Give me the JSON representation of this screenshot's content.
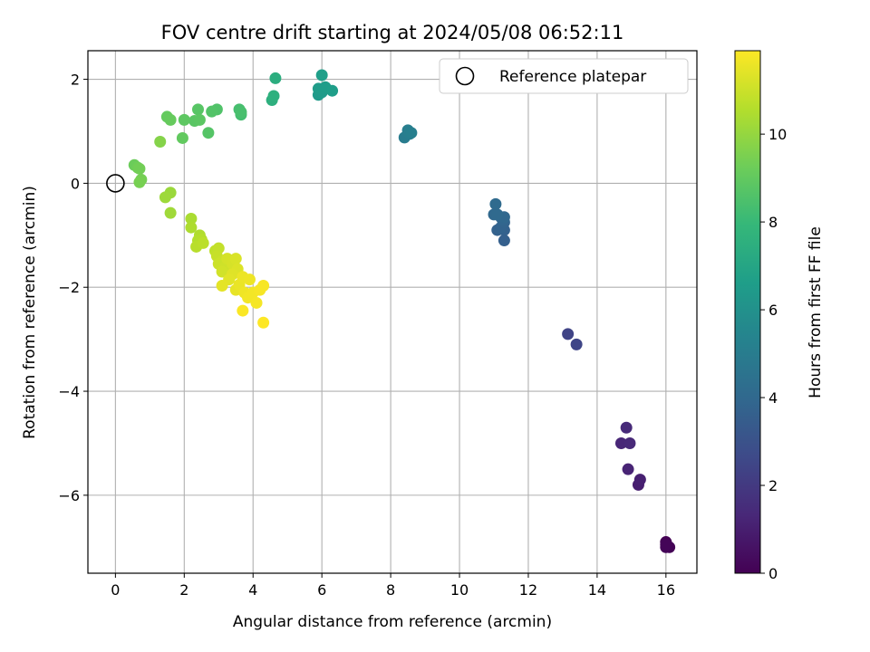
{
  "chart_data": {
    "type": "scatter",
    "title": "FOV centre drift starting at 2024/05/08 06:52:11",
    "xlabel": "Angular distance from reference (arcmin)",
    "ylabel": "Rotation from reference (arcmin)",
    "xlim": [
      -0.8,
      16.9
    ],
    "ylim": [
      -7.5,
      2.55
    ],
    "xticks": [
      0,
      2,
      4,
      6,
      8,
      10,
      12,
      14,
      16
    ],
    "yticks": [
      2,
      0,
      -2,
      -4,
      -6
    ],
    "grid": true,
    "legend": {
      "placement": "top-right",
      "entries": [
        "Reference platepar"
      ]
    },
    "reference_point": {
      "x": 0,
      "y": 0
    },
    "colorbar": {
      "label": "Hours from first FF file",
      "colormap": "viridis",
      "range": [
        0,
        11.9
      ],
      "ticks": [
        0,
        2,
        4,
        6,
        8,
        10
      ]
    },
    "points": [
      {
        "x": 16.0,
        "y": -6.9,
        "h": 0.0
      },
      {
        "x": 16.1,
        "y": -7.0,
        "h": 0.05
      },
      {
        "x": 16.0,
        "y": -7.0,
        "h": 0.1
      },
      {
        "x": 16.0,
        "y": -6.95,
        "h": 0.15
      },
      {
        "x": 15.2,
        "y": -5.8,
        "h": 1.0
      },
      {
        "x": 15.25,
        "y": -5.7,
        "h": 1.05
      },
      {
        "x": 14.9,
        "y": -5.5,
        "h": 1.2
      },
      {
        "x": 14.7,
        "y": -5.0,
        "h": 1.3
      },
      {
        "x": 14.95,
        "y": -5.0,
        "h": 1.35
      },
      {
        "x": 14.85,
        "y": -4.7,
        "h": 1.4
      },
      {
        "x": 13.15,
        "y": -2.9,
        "h": 2.4
      },
      {
        "x": 13.4,
        "y": -3.1,
        "h": 2.45
      },
      {
        "x": 11.3,
        "y": -1.1,
        "h": 3.6
      },
      {
        "x": 11.3,
        "y": -0.9,
        "h": 3.65
      },
      {
        "x": 11.1,
        "y": -0.9,
        "h": 3.7
      },
      {
        "x": 11.2,
        "y": -0.85,
        "h": 3.75
      },
      {
        "x": 11.3,
        "y": -0.75,
        "h": 3.8
      },
      {
        "x": 11.2,
        "y": -0.65,
        "h": 3.85
      },
      {
        "x": 11.25,
        "y": -0.7,
        "h": 3.9
      },
      {
        "x": 11.3,
        "y": -0.65,
        "h": 3.95
      },
      {
        "x": 11.0,
        "y": -0.6,
        "h": 4.0
      },
      {
        "x": 11.1,
        "y": -0.6,
        "h": 4.05
      },
      {
        "x": 11.05,
        "y": -0.4,
        "h": 4.1
      },
      {
        "x": 8.4,
        "y": 0.88,
        "h": 5.0
      },
      {
        "x": 8.55,
        "y": 0.95,
        "h": 5.05
      },
      {
        "x": 8.5,
        "y": 1.02,
        "h": 5.1
      },
      {
        "x": 8.6,
        "y": 0.97,
        "h": 5.15
      },
      {
        "x": 5.9,
        "y": 1.7,
        "h": 6.4
      },
      {
        "x": 6.0,
        "y": 1.75,
        "h": 6.45
      },
      {
        "x": 5.9,
        "y": 1.82,
        "h": 6.5
      },
      {
        "x": 6.1,
        "y": 1.85,
        "h": 6.55
      },
      {
        "x": 6.3,
        "y": 1.78,
        "h": 6.6
      },
      {
        "x": 6.0,
        "y": 2.08,
        "h": 6.65
      },
      {
        "x": 4.65,
        "y": 2.02,
        "h": 7.4
      },
      {
        "x": 4.55,
        "y": 1.6,
        "h": 7.5
      },
      {
        "x": 4.6,
        "y": 1.68,
        "h": 7.55
      },
      {
        "x": 3.65,
        "y": 1.32,
        "h": 8.3
      },
      {
        "x": 3.6,
        "y": 1.42,
        "h": 8.35
      },
      {
        "x": 3.65,
        "y": 1.37,
        "h": 8.4
      },
      {
        "x": 2.95,
        "y": 1.42,
        "h": 8.6
      },
      {
        "x": 2.8,
        "y": 1.38,
        "h": 8.65
      },
      {
        "x": 2.7,
        "y": 0.97,
        "h": 8.7
      },
      {
        "x": 2.4,
        "y": 1.42,
        "h": 8.75
      },
      {
        "x": 2.3,
        "y": 1.2,
        "h": 8.8
      },
      {
        "x": 2.45,
        "y": 1.22,
        "h": 8.85
      },
      {
        "x": 2.0,
        "y": 1.22,
        "h": 8.9
      },
      {
        "x": 1.95,
        "y": 0.87,
        "h": 9.0
      },
      {
        "x": 1.5,
        "y": 1.28,
        "h": 9.05
      },
      {
        "x": 1.6,
        "y": 1.22,
        "h": 9.1
      },
      {
        "x": 0.55,
        "y": 0.35,
        "h": 9.2
      },
      {
        "x": 0.65,
        "y": 0.3,
        "h": 9.3
      },
      {
        "x": 0.7,
        "y": 0.28,
        "h": 9.35
      },
      {
        "x": 0.75,
        "y": 0.07,
        "h": 9.4
      },
      {
        "x": 0.7,
        "y": 0.02,
        "h": 9.45
      },
      {
        "x": 1.3,
        "y": 0.8,
        "h": 9.7
      },
      {
        "x": 1.6,
        "y": -0.18,
        "h": 10.1
      },
      {
        "x": 1.45,
        "y": -0.27,
        "h": 10.15
      },
      {
        "x": 1.6,
        "y": -0.57,
        "h": 10.2
      },
      {
        "x": 2.2,
        "y": -0.68,
        "h": 10.4
      },
      {
        "x": 2.2,
        "y": -0.85,
        "h": 10.45
      },
      {
        "x": 2.45,
        "y": -1.0,
        "h": 10.5
      },
      {
        "x": 2.4,
        "y": -1.1,
        "h": 10.55
      },
      {
        "x": 2.5,
        "y": -1.08,
        "h": 10.6
      },
      {
        "x": 2.35,
        "y": -1.22,
        "h": 10.65
      },
      {
        "x": 2.55,
        "y": -1.15,
        "h": 10.7
      },
      {
        "x": 2.9,
        "y": -1.3,
        "h": 10.8
      },
      {
        "x": 3.0,
        "y": -1.25,
        "h": 10.85
      },
      {
        "x": 2.95,
        "y": -1.4,
        "h": 10.9
      },
      {
        "x": 3.1,
        "y": -1.5,
        "h": 10.95
      },
      {
        "x": 3.0,
        "y": -1.55,
        "h": 11.0
      },
      {
        "x": 3.2,
        "y": -1.6,
        "h": 11.05
      },
      {
        "x": 3.1,
        "y": -1.7,
        "h": 11.1
      },
      {
        "x": 3.25,
        "y": -1.45,
        "h": 11.15
      },
      {
        "x": 3.4,
        "y": -1.55,
        "h": 11.2
      },
      {
        "x": 3.5,
        "y": -1.45,
        "h": 11.25
      },
      {
        "x": 3.55,
        "y": -1.65,
        "h": 11.3
      },
      {
        "x": 3.4,
        "y": -1.75,
        "h": 11.35
      },
      {
        "x": 3.3,
        "y": -1.85,
        "h": 11.4
      },
      {
        "x": 3.1,
        "y": -1.97,
        "h": 11.45
      },
      {
        "x": 3.5,
        "y": -2.05,
        "h": 11.5
      },
      {
        "x": 3.6,
        "y": -1.95,
        "h": 11.55
      },
      {
        "x": 3.7,
        "y": -1.8,
        "h": 11.6
      },
      {
        "x": 3.9,
        "y": -1.85,
        "h": 11.62
      },
      {
        "x": 3.75,
        "y": -2.1,
        "h": 11.65
      },
      {
        "x": 3.85,
        "y": -2.2,
        "h": 11.7
      },
      {
        "x": 4.0,
        "y": -2.1,
        "h": 11.72
      },
      {
        "x": 4.1,
        "y": -2.3,
        "h": 11.75
      },
      {
        "x": 4.2,
        "y": -2.05,
        "h": 11.78
      },
      {
        "x": 4.3,
        "y": -1.97,
        "h": 11.8
      },
      {
        "x": 3.7,
        "y": -2.45,
        "h": 11.85
      },
      {
        "x": 4.3,
        "y": -2.68,
        "h": 11.9
      }
    ]
  }
}
